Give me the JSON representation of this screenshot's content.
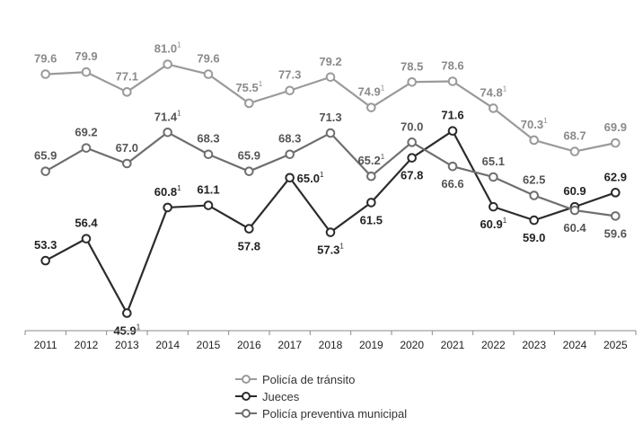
{
  "chart_data": {
    "type": "line",
    "x": [
      "2011",
      "2012",
      "2013",
      "2014",
      "2015",
      "2016",
      "2017",
      "2018",
      "2019",
      "2020",
      "2021",
      "2022",
      "2023",
      "2024",
      "2025"
    ],
    "ylim": [
      40,
      85
    ],
    "grid": false,
    "legend_position": "bottom-center",
    "series": [
      {
        "key": "transito",
        "name": "Policía de tránsito",
        "color": "#9a9a9a",
        "marker_fill": "#ffffff",
        "values": [
          79.6,
          79.9,
          77.1,
          81.0,
          79.6,
          75.5,
          77.3,
          79.2,
          74.9,
          78.5,
          78.6,
          74.8,
          70.3,
          68.7,
          69.9
        ],
        "labels": [
          "79.6",
          "79.9",
          "77.1",
          "81.0",
          "79.6",
          "75.5",
          "77.3",
          "79.2",
          "74.9",
          "78.5",
          "78.6",
          "74.8",
          "70.3",
          "68.7",
          "69.9"
        ],
        "sup": [
          false,
          false,
          false,
          true,
          false,
          true,
          false,
          false,
          true,
          false,
          false,
          true,
          true,
          false,
          false
        ],
        "label_pos": [
          "above",
          "above",
          "above",
          "above",
          "above",
          "above",
          "above",
          "above",
          "above",
          "above",
          "above",
          "above",
          "above",
          "above",
          "above"
        ],
        "label_color": "#8a8a8a"
      },
      {
        "key": "jueces",
        "name": "Jueces",
        "color": "#2b2b2b",
        "marker_fill": "#ffffff",
        "values": [
          53.3,
          56.4,
          45.9,
          60.8,
          61.1,
          57.8,
          65.0,
          57.3,
          61.5,
          67.8,
          71.6,
          60.9,
          59.0,
          60.9,
          62.9
        ],
        "labels": [
          "53.3",
          "56.4",
          "45.9",
          "60.8",
          "61.1",
          "57.8",
          "65.0",
          "57.3",
          "61.5",
          "67.8",
          "71.6",
          "60.9",
          "59.0",
          "60.9",
          "62.9"
        ],
        "sup": [
          false,
          false,
          true,
          true,
          false,
          false,
          true,
          true,
          false,
          false,
          false,
          true,
          false,
          false,
          false
        ],
        "label_pos": [
          "above",
          "above",
          "below",
          "above",
          "above",
          "below",
          "right",
          "below",
          "below",
          "below",
          "above",
          "below",
          "below",
          "above",
          "above"
        ],
        "label_color": "#222222"
      },
      {
        "key": "preventiva",
        "name": "Policía preventiva municipal",
        "color": "#6e6e6e",
        "marker_fill": "#ffffff",
        "values": [
          65.9,
          69.2,
          67.0,
          71.4,
          68.3,
          65.9,
          68.3,
          71.3,
          65.2,
          70.0,
          66.6,
          65.1,
          62.5,
          60.4,
          59.6
        ],
        "labels": [
          "65.9",
          "69.2",
          "67.0",
          "71.4",
          "68.3",
          "65.9",
          "68.3",
          "71.3",
          "65.2",
          "70.0",
          "66.6",
          "65.1",
          "62.5",
          "60.4",
          "59.6"
        ],
        "sup": [
          false,
          false,
          false,
          true,
          false,
          false,
          false,
          false,
          true,
          false,
          false,
          false,
          false,
          false,
          false
        ],
        "label_pos": [
          "above",
          "above",
          "above",
          "above",
          "above",
          "above",
          "above",
          "above",
          "above",
          "above",
          "below",
          "above",
          "above",
          "below",
          "below"
        ],
        "label_color": "#555555"
      }
    ]
  },
  "legend": {
    "items": [
      {
        "label": "Policía de tránsito",
        "color": "#9a9a9a"
      },
      {
        "label": "Jueces",
        "color": "#2b2b2b"
      },
      {
        "label": "Policía preventiva municipal",
        "color": "#6e6e6e"
      }
    ]
  },
  "footnote_mark": "1"
}
